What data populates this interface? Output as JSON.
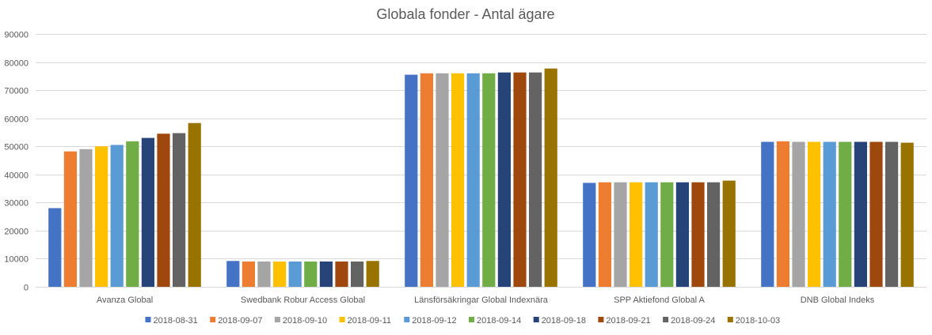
{
  "chart_data": {
    "type": "bar",
    "title": "Globala fonder - Antal ägare",
    "xlabel": "",
    "ylabel": "",
    "ylim": [
      0,
      90000
    ],
    "yticks": [
      0,
      10000,
      20000,
      30000,
      40000,
      50000,
      60000,
      70000,
      80000,
      90000
    ],
    "grid": true,
    "legend_position": "bottom",
    "categories": [
      "Avanza Global",
      "Swedbank Robur Access Global",
      "Länsförsäkringar Global Indexnära",
      "SPP Aktiefond Global A",
      "DNB Global Indeks"
    ],
    "series": [
      {
        "name": "2018-08-31",
        "color": "#4472C4",
        "values": [
          28000,
          9200,
          75500,
          37000,
          51600
        ]
      },
      {
        "name": "2018-09-07",
        "color": "#ED7D31",
        "values": [
          48200,
          9000,
          76000,
          37200,
          51800
        ]
      },
      {
        "name": "2018-09-10",
        "color": "#A5A5A5",
        "values": [
          49000,
          9000,
          76000,
          37200,
          51600
        ]
      },
      {
        "name": "2018-09-11",
        "color": "#FFC000",
        "values": [
          50000,
          9000,
          76000,
          37200,
          51600
        ]
      },
      {
        "name": "2018-09-12",
        "color": "#5B9BD5",
        "values": [
          50500,
          9000,
          76000,
          37200,
          51600
        ]
      },
      {
        "name": "2018-09-14",
        "color": "#70AD47",
        "values": [
          51800,
          9000,
          76000,
          37200,
          51600
        ]
      },
      {
        "name": "2018-09-18",
        "color": "#264478",
        "values": [
          53000,
          9000,
          76300,
          37200,
          51600
        ]
      },
      {
        "name": "2018-09-21",
        "color": "#9E480E",
        "values": [
          54500,
          9000,
          76300,
          37200,
          51600
        ]
      },
      {
        "name": "2018-09-24",
        "color": "#636363",
        "values": [
          54700,
          9000,
          76300,
          37200,
          51600
        ]
      },
      {
        "name": "2018-10-03",
        "color": "#997300",
        "values": [
          58300,
          9200,
          77700,
          37800,
          51300
        ]
      }
    ]
  }
}
